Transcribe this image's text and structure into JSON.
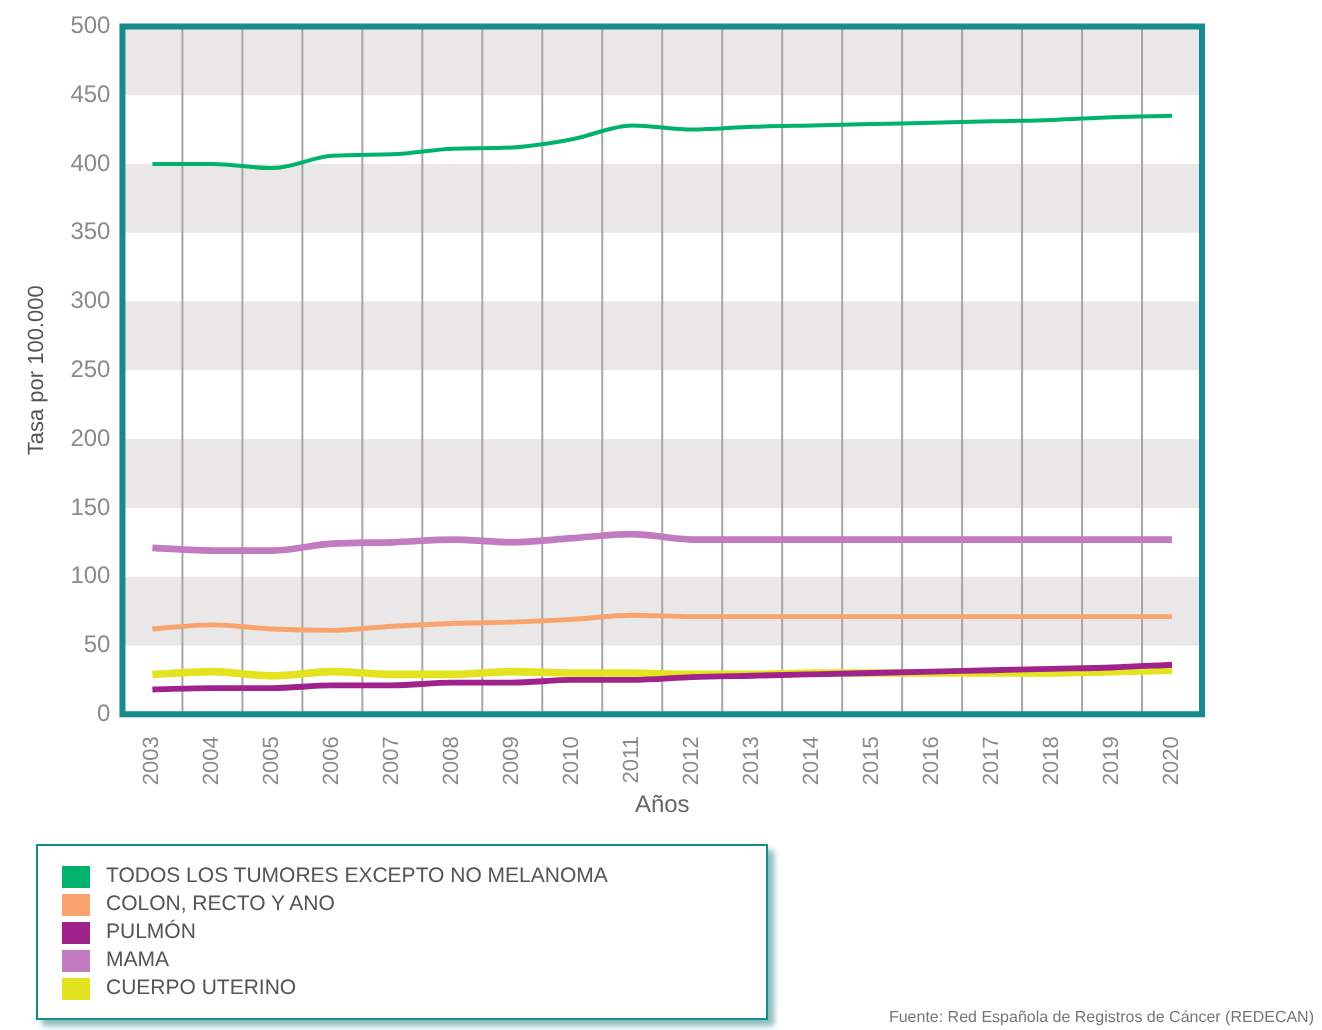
{
  "chart_data": {
    "type": "line",
    "xlabel": "Años",
    "ylabel": "Tasa por 100.000",
    "categories": [
      "2003",
      "2004",
      "2005",
      "2006",
      "2007",
      "2008",
      "2009",
      "2010",
      "2011",
      "2012",
      "2013",
      "2014",
      "2015",
      "2016",
      "2017",
      "2018",
      "2019",
      "2020"
    ],
    "series": [
      {
        "name": "TODOS LOS TUMORES EXCEPTO NO MELANOMA",
        "color": "#00b26b",
        "values": [
          400,
          400,
          397,
          406,
          407,
          411,
          412,
          418,
          428,
          425,
          427,
          428,
          429,
          430,
          431,
          432,
          434,
          435
        ]
      },
      {
        "name": "COLON, RECTO Y ANO",
        "color": "#f9a36f",
        "values": [
          62,
          65,
          62,
          61,
          64,
          66,
          67,
          69,
          72,
          71,
          71,
          71,
          71,
          71,
          71,
          71,
          71,
          71
        ]
      },
      {
        "name": "PULMÓN",
        "color": "#a0228c",
        "values": [
          18,
          19,
          19,
          21,
          21,
          23,
          23,
          25,
          25,
          27,
          28,
          29,
          30,
          31,
          32,
          33,
          34,
          36
        ]
      },
      {
        "name": "MAMA",
        "color": "#c27ac0",
        "values": [
          121,
          119,
          119,
          124,
          125,
          127,
          125,
          128,
          131,
          127,
          127,
          127,
          127,
          127,
          127,
          127,
          127,
          127
        ]
      },
      {
        "name": "CUERPO UTERINO",
        "color": "#e3e31f",
        "values": [
          29,
          31,
          28,
          31,
          29,
          29,
          31,
          30,
          30,
          29,
          29,
          30,
          30,
          30,
          30,
          30,
          31,
          32
        ]
      }
    ],
    "ylim": [
      0,
      500
    ],
    "yticks": [
      0,
      50,
      100,
      150,
      200,
      250,
      300,
      350,
      400,
      450,
      500
    ],
    "grid": true,
    "legend": "bottom",
    "marker": "none",
    "line_style": "solid",
    "annotations": [
      "Fuente: Red Española de Registros de Cáncer (REDECAN)"
    ]
  }
}
